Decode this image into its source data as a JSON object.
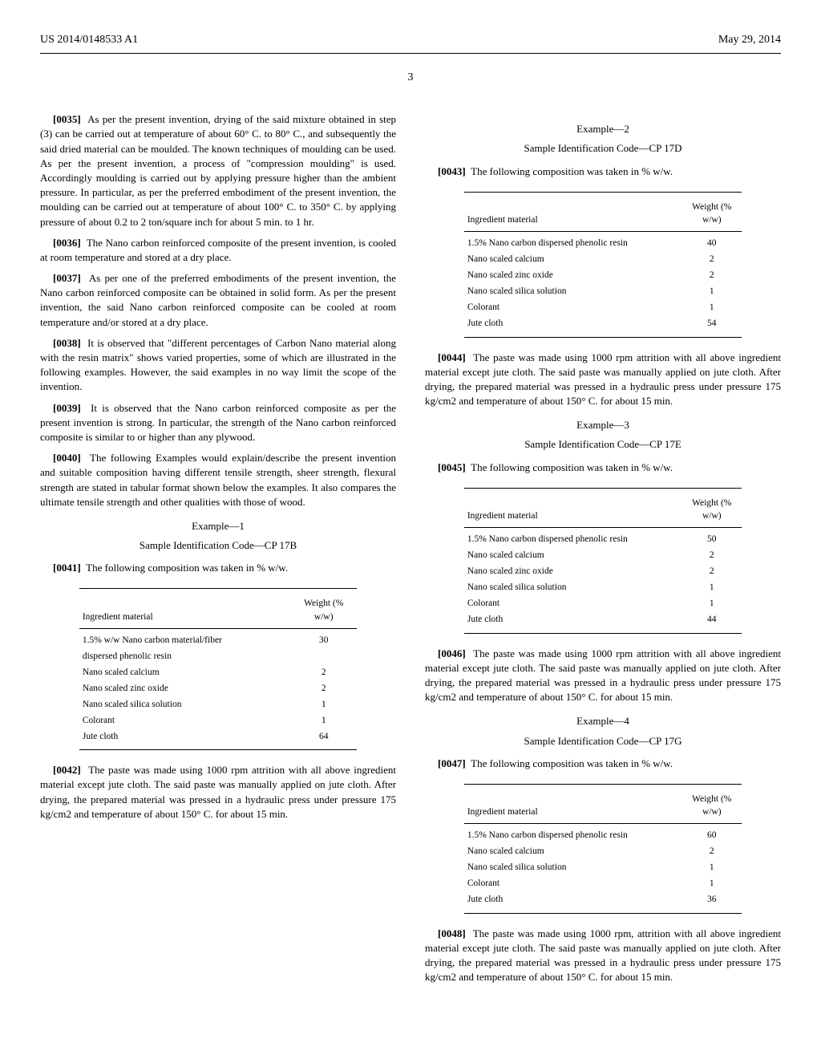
{
  "header": {
    "left": "US 2014/0148533 A1",
    "right": "May 29, 2014",
    "page": "3"
  },
  "left_col": {
    "p0035": {
      "num": "[0035]",
      "text": "As per the present invention, drying of the said mixture obtained in step (3) can be carried out at temperature of about 60° C. to 80° C., and subsequently the said dried material can be moulded. The known techniques of moulding can be used. As per the present invention, a process of \"compression moulding\" is used. Accordingly moulding is carried out by applying pressure higher than the ambient pressure. In particular, as per the preferred embodiment of the present invention, the moulding can be carried out at temperature of about 100° C. to 350° C. by applying pressure of about 0.2 to 2 ton/square inch for about 5 min. to 1 hr."
    },
    "p0036": {
      "num": "[0036]",
      "text": "The Nano carbon reinforced composite of the present invention, is cooled at room temperature and stored at a dry place."
    },
    "p0037": {
      "num": "[0037]",
      "text": "As per one of the preferred embodiments of the present invention, the Nano carbon reinforced composite can be obtained in solid form. As per the present invention, the said Nano carbon reinforced composite can be cooled at room temperature and/or stored at a dry place."
    },
    "p0038": {
      "num": "[0038]",
      "text": "It is observed that \"different percentages of Carbon Nano material along with the resin matrix\" shows varied properties, some of which are illustrated in the following examples. However, the said examples in no way limit the scope of the invention."
    },
    "p0039": {
      "num": "[0039]",
      "text": "It is observed that the Nano carbon reinforced composite as per the present invention is strong. In particular, the strength of the Nano carbon reinforced composite is similar to or higher than any plywood."
    },
    "p0040": {
      "num": "[0040]",
      "text": "The following Examples would explain/describe the present invention and suitable composition having different tensile strength, sheer strength, flexural strength are stated in tabular format shown below the examples. It also compares the ultimate tensile strength and other qualities with those of wood."
    },
    "ex1_title": "Example—1",
    "ex1_sub": "Sample Identification Code—CP 17B",
    "p0041": {
      "num": "[0041]",
      "text": "The following composition was taken in % w/w."
    },
    "table1": {
      "col1_header": "Ingredient material",
      "col2_header_a": "Weight (%",
      "col2_header_b": "w/w)",
      "rows": [
        {
          "name": "1.5% w/w Nano carbon material/fiber",
          "val": "30"
        },
        {
          "name": "dispersed phenolic resin",
          "val": ""
        },
        {
          "name": "Nano scaled calcium",
          "val": "2"
        },
        {
          "name": "Nano scaled zinc oxide",
          "val": "2"
        },
        {
          "name": "Nano scaled silica solution",
          "val": "1"
        },
        {
          "name": "Colorant",
          "val": "1"
        },
        {
          "name": "Jute cloth",
          "val": "64"
        }
      ]
    },
    "p0042": {
      "num": "[0042]",
      "text": "The paste was made using 1000 rpm attrition with all above ingredient material except jute cloth. The said paste was manually applied on jute cloth. After drying, the prepared material was pressed in a hydraulic press under pressure 175 kg/cm2 and temperature of about 150° C. for about 15 min."
    }
  },
  "right_col": {
    "ex2_title": "Example—2",
    "ex2_sub": "Sample Identification Code—CP 17D",
    "p0043": {
      "num": "[0043]",
      "text": "The following composition was taken in % w/w."
    },
    "table2": {
      "col1_header": "Ingredient material",
      "col2_header_a": "Weight (%",
      "col2_header_b": "w/w)",
      "rows": [
        {
          "name": "1.5% Nano carbon dispersed phenolic resin",
          "val": "40"
        },
        {
          "name": "Nano scaled calcium",
          "val": "2"
        },
        {
          "name": "Nano scaled zinc oxide",
          "val": "2"
        },
        {
          "name": "Nano scaled silica solution",
          "val": "1"
        },
        {
          "name": "Colorant",
          "val": "1"
        },
        {
          "name": "Jute cloth",
          "val": "54"
        }
      ]
    },
    "p0044": {
      "num": "[0044]",
      "text": "The paste was made using 1000 rpm attrition with all above ingredient material except jute cloth. The said paste was manually applied on jute cloth. After drying, the prepared material was pressed in a hydraulic press under pressure 175 kg/cm2 and temperature of about 150° C. for about 15 min."
    },
    "ex3_title": "Example—3",
    "ex3_sub": "Sample Identification Code—CP 17E",
    "p0045": {
      "num": "[0045]",
      "text": "The following composition was taken in % w/w."
    },
    "table3": {
      "col1_header": "Ingredient material",
      "col2_header_a": "Weight (%",
      "col2_header_b": "w/w)",
      "rows": [
        {
          "name": "1.5% Nano carbon dispersed phenolic resin",
          "val": "50"
        },
        {
          "name": "Nano scaled calcium",
          "val": "2"
        },
        {
          "name": "Nano scaled zinc oxide",
          "val": "2"
        },
        {
          "name": "Nano scaled silica solution",
          "val": "1"
        },
        {
          "name": "Colorant",
          "val": "1"
        },
        {
          "name": "Jute cloth",
          "val": "44"
        }
      ]
    },
    "p0046": {
      "num": "[0046]",
      "text": "The paste was made using 1000 rpm attrition with all above ingredient material except jute cloth. The said paste was manually applied on jute cloth. After drying, the prepared material was pressed in a hydraulic press under pressure 175 kg/cm2 and temperature of about 150° C. for about 15 min."
    },
    "ex4_title": "Example—4",
    "ex4_sub": "Sample Identification Code—CP 17G",
    "p0047": {
      "num": "[0047]",
      "text": "The following composition was taken in % w/w."
    },
    "table4": {
      "col1_header": "Ingredient material",
      "col2_header_a": "Weight (%",
      "col2_header_b": "w/w)",
      "rows": [
        {
          "name": "1.5% Nano carbon dispersed phenolic resin",
          "val": "60"
        },
        {
          "name": "Nano scaled calcium",
          "val": "2"
        },
        {
          "name": "Nano scaled silica solution",
          "val": "1"
        },
        {
          "name": "Colorant",
          "val": "1"
        },
        {
          "name": "Jute cloth",
          "val": "36"
        }
      ]
    },
    "p0048": {
      "num": "[0048]",
      "text": "The paste was made using 1000 rpm, attrition with all above ingredient material except jute cloth. The said paste was manually applied on jute cloth. After drying, the prepared material was pressed in a hydraulic press under pressure 175 kg/cm2 and temperature of about 150° C. for about 15 min."
    }
  }
}
